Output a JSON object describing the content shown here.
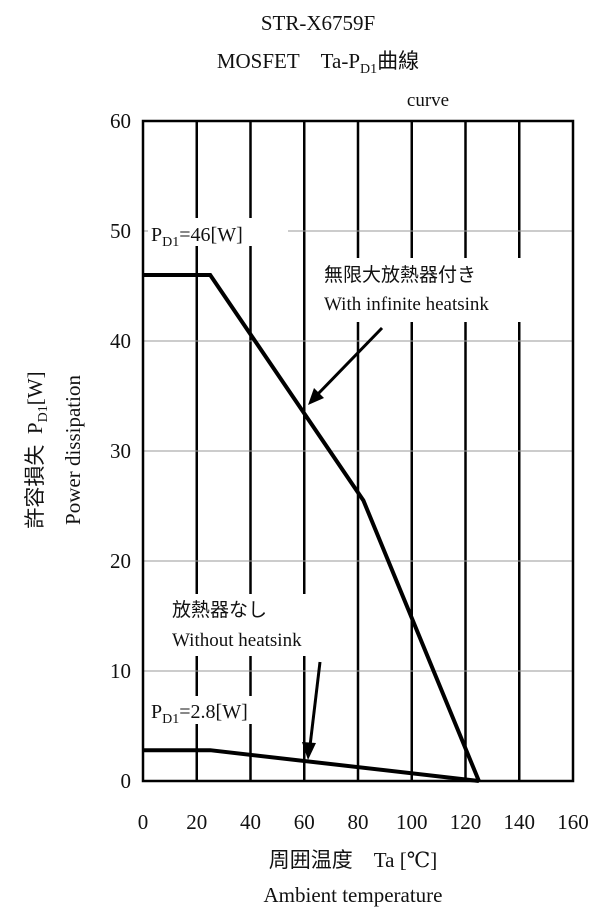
{
  "title": {
    "line1": "STR-X6759F",
    "line2_prefix": "MOSFET Ta-P",
    "line2_sub": "D1",
    "line2_suffix": "曲線",
    "line3": "curve"
  },
  "ylabel": {
    "jp_prefix": "許容損失 P",
    "jp_sub": "D1",
    "jp_suffix": "[W]",
    "en": "Power dissipation"
  },
  "xlabel": {
    "jp": "周囲温度 Ta [℃]",
    "en": "Ambient temperature"
  },
  "annotations": {
    "pd_high_prefix": "P",
    "pd_high_sub": "D1",
    "pd_high_suffix": "=46[W]",
    "pd_low_prefix": "P",
    "pd_low_sub": "D1",
    "pd_low_suffix": "=2.8[W]",
    "heatsink_jp": "無限大放熱器付き",
    "heatsink_en": "With infinite heatsink",
    "no_heatsink_jp": "放熱器なし",
    "no_heatsink_en": "Without heatsink"
  },
  "chart_data": {
    "type": "line",
    "xlim": [
      0,
      160
    ],
    "ylim": [
      0,
      60
    ],
    "x_ticks": [
      0,
      20,
      40,
      60,
      80,
      100,
      120,
      140,
      160
    ],
    "y_ticks": [
      0,
      10,
      20,
      30,
      40,
      50,
      60
    ],
    "grid": true,
    "series": [
      {
        "name": "With infinite heatsink",
        "x": [
          0,
          25,
          82,
          125
        ],
        "y": [
          46,
          46,
          25.5,
          0
        ]
      },
      {
        "name": "Without heatsink",
        "x": [
          0,
          25,
          125
        ],
        "y": [
          2.8,
          2.8,
          0
        ]
      }
    ]
  }
}
